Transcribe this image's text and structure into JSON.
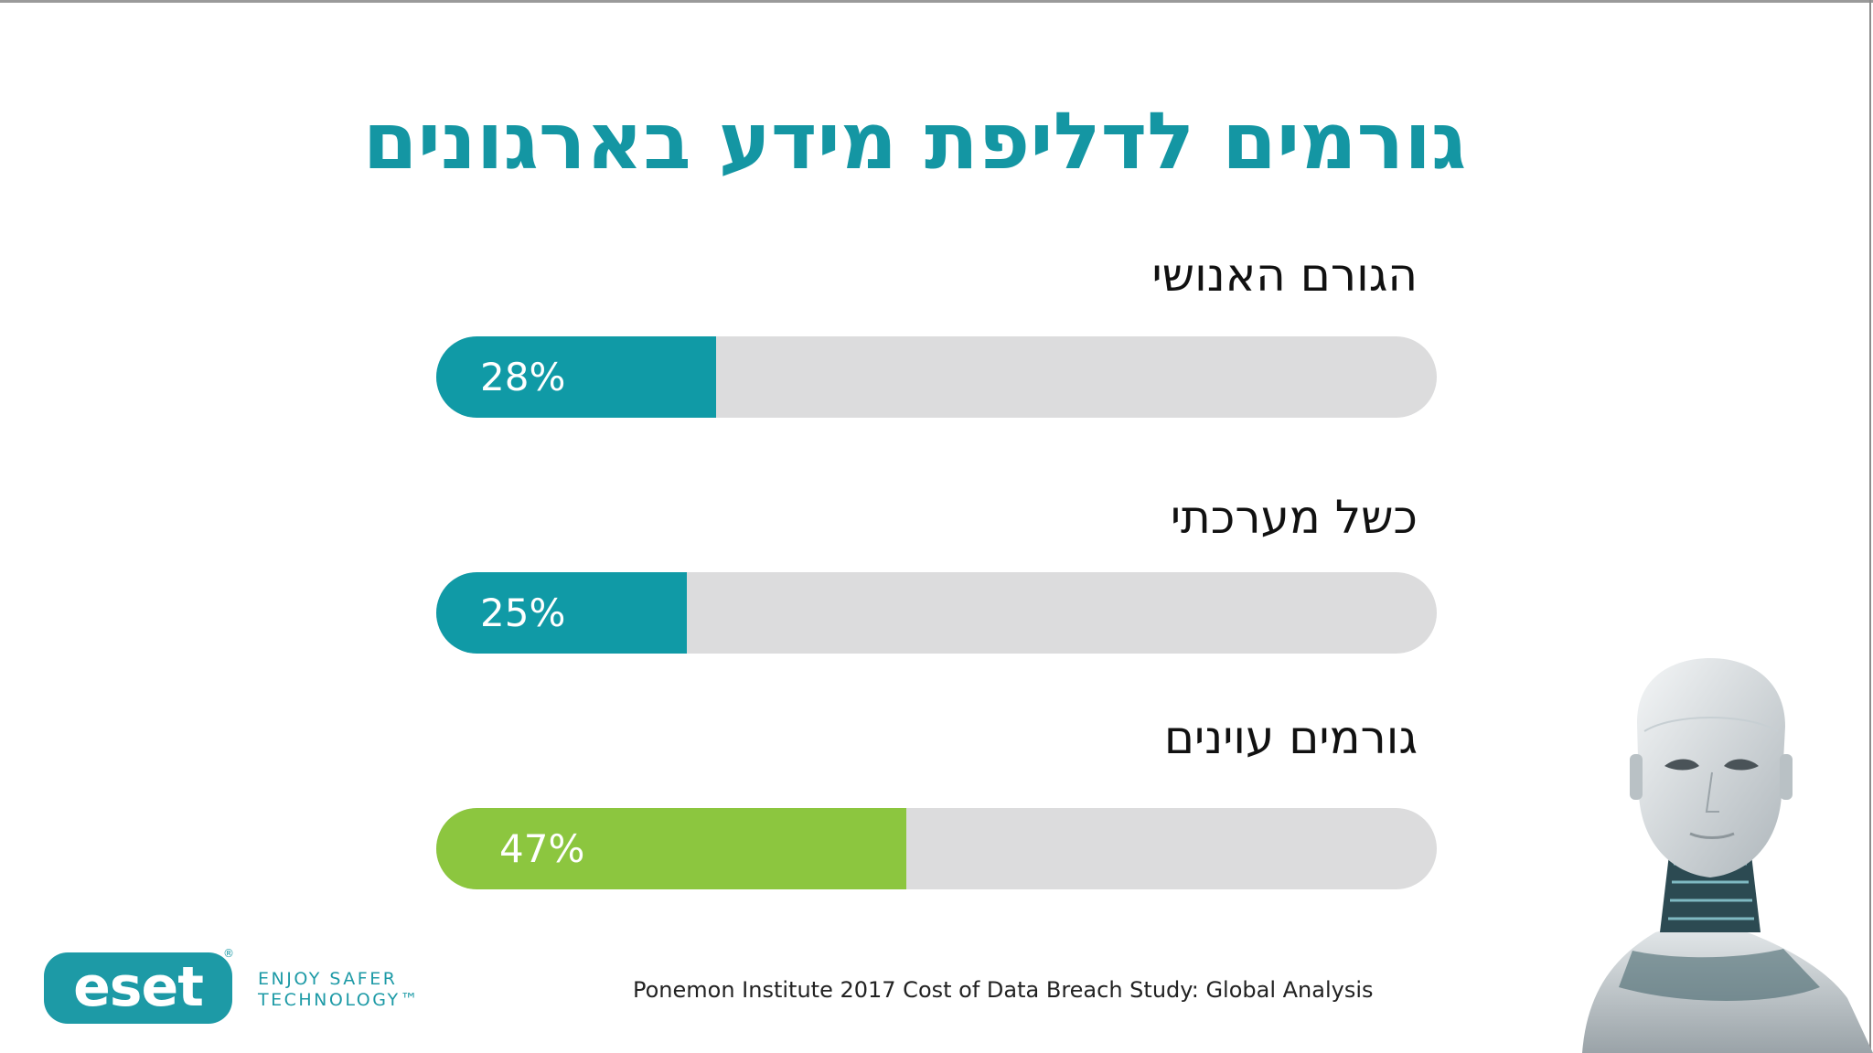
{
  "title": "גורמים לדליפת מידע בארגונים",
  "colors": {
    "title": "#1496a3",
    "teal": "#109aa6",
    "green": "#8cc63f",
    "track": "#dcdcdd",
    "logo": "#1d9aa6"
  },
  "chart_data": {
    "type": "bar",
    "orientation": "horizontal",
    "unit": "%",
    "xlim": [
      0,
      100
    ],
    "categories": [
      "הגורם האנושי",
      "כשל מערכתי",
      "גורמים עוינים"
    ],
    "values": [
      28,
      25,
      47
    ],
    "value_labels": [
      "28%",
      "25%",
      "47%"
    ],
    "bar_colors": [
      "#109aa6",
      "#109aa6",
      "#8cc63f"
    ]
  },
  "source": "Ponemon Institute 2017 Cost of Data Breach Study: Global Analysis",
  "logo": {
    "text": "eset",
    "registered": "®",
    "tagline": "ENJOY SAFER\nTECHNOLOGY™"
  }
}
